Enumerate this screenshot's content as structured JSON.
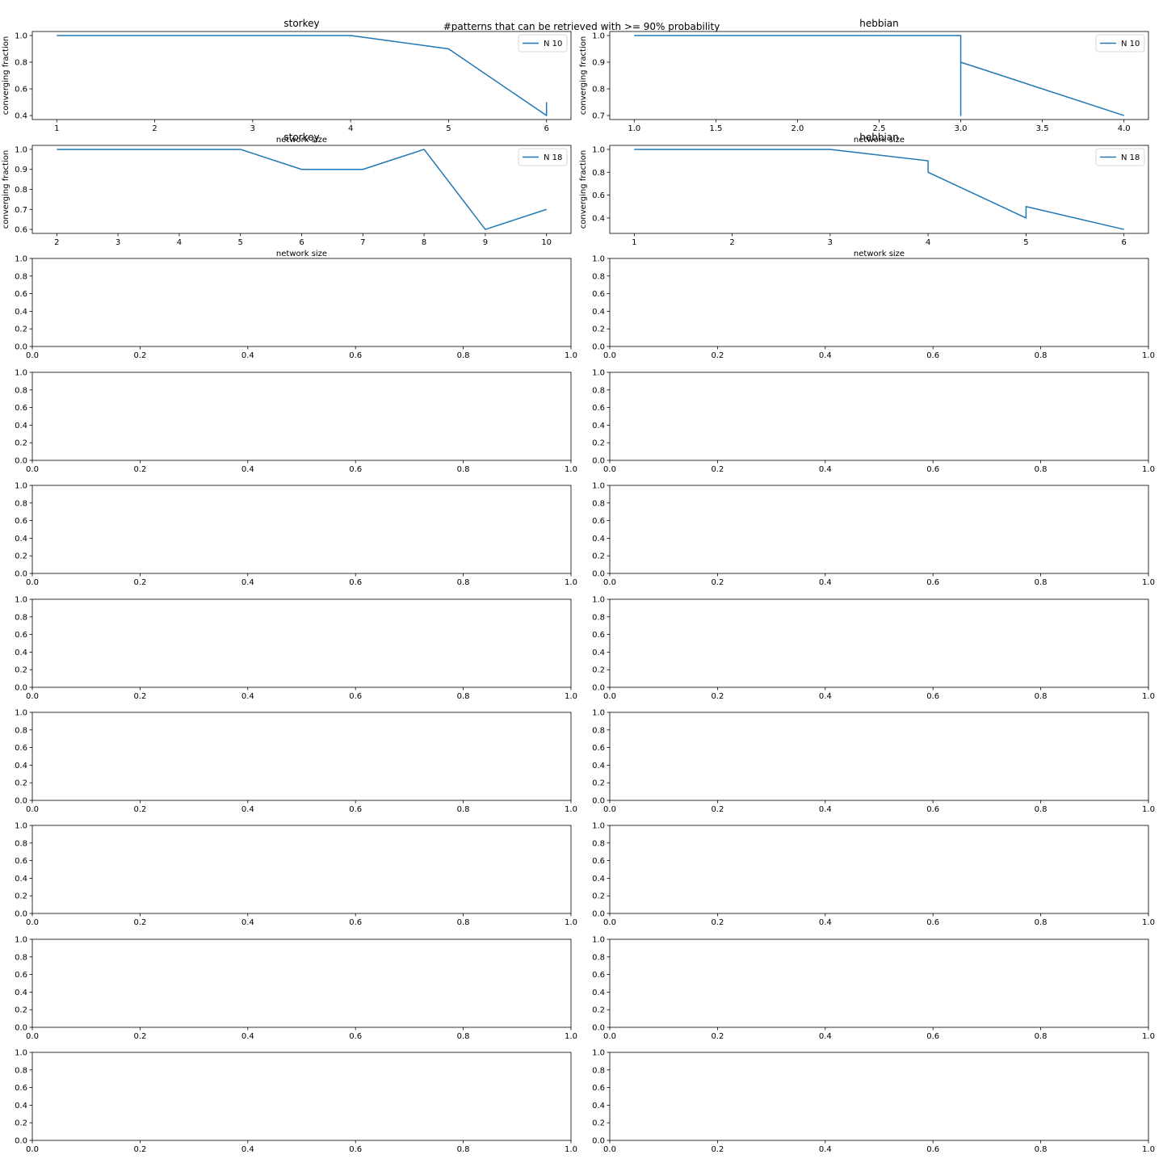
{
  "figure": {
    "suptitle": "#patterns that can be retrieved with >= 90% probability",
    "line_color": "#1f77b4"
  },
  "chart_data": [
    {
      "type": "line",
      "title": "storkey",
      "xlabel": "network size",
      "ylabel": "converging fraction",
      "xlim": [
        0.75,
        6.25
      ],
      "ylim": [
        0.37,
        1.03
      ],
      "xticks": [
        1,
        2,
        3,
        4,
        5,
        6
      ],
      "xtick_labels": [
        "1",
        "2",
        "3",
        "4",
        "5",
        "6"
      ],
      "yticks": [
        0.4,
        0.6,
        0.8,
        1.0
      ],
      "ytick_labels": [
        "0.4",
        "0.6",
        "0.8",
        "1.0"
      ],
      "legend_position": "top-right",
      "series": [
        {
          "name": "N 10",
          "x": [
            1,
            2,
            3,
            4,
            5,
            6,
            6
          ],
          "y": [
            1.0,
            1.0,
            1.0,
            1.0,
            0.9,
            0.4,
            0.5
          ]
        }
      ]
    },
    {
      "type": "line",
      "title": "hebbian",
      "xlabel": "network size",
      "ylabel": "converging fraction",
      "xlim": [
        0.85,
        4.15
      ],
      "ylim": [
        0.685,
        1.015
      ],
      "xticks": [
        1.0,
        1.5,
        2.0,
        2.5,
        3.0,
        3.5,
        4.0
      ],
      "xtick_labels": [
        "1.0",
        "1.5",
        "2.0",
        "2.5",
        "3.0",
        "3.5",
        "4.0"
      ],
      "yticks": [
        0.7,
        0.8,
        0.9,
        1.0
      ],
      "ytick_labels": [
        "0.7",
        "0.8",
        "0.9",
        "1.0"
      ],
      "legend_position": "top-right",
      "series": [
        {
          "name": "N 10",
          "x": [
            1,
            2,
            3,
            3,
            3,
            4
          ],
          "y": [
            1.0,
            1.0,
            1.0,
            0.7,
            0.9,
            0.7
          ]
        }
      ]
    },
    {
      "type": "line",
      "title": "storkey",
      "xlabel": "network size",
      "ylabel": "converging fraction",
      "xlim": [
        1.6,
        10.4
      ],
      "ylim": [
        0.58,
        1.02
      ],
      "xticks": [
        2,
        3,
        4,
        5,
        6,
        7,
        8,
        9,
        10
      ],
      "xtick_labels": [
        "2",
        "3",
        "4",
        "5",
        "6",
        "7",
        "8",
        "9",
        "10"
      ],
      "yticks": [
        0.6,
        0.7,
        0.8,
        0.9,
        1.0
      ],
      "ytick_labels": [
        "0.6",
        "0.7",
        "0.8",
        "0.9",
        "1.0"
      ],
      "legend_position": "top-right",
      "series": [
        {
          "name": "N 18",
          "x": [
            2,
            3,
            4,
            5,
            6,
            7,
            8,
            9,
            10
          ],
          "y": [
            1.0,
            1.0,
            1.0,
            1.0,
            0.9,
            0.9,
            1.0,
            0.6,
            0.7
          ]
        }
      ]
    },
    {
      "type": "line",
      "title": "hebbian",
      "xlabel": "network size",
      "ylabel": "converging fraction",
      "xlim": [
        0.75,
        6.25
      ],
      "ylim": [
        0.265,
        1.035
      ],
      "xticks": [
        1,
        2,
        3,
        4,
        5,
        6
      ],
      "xtick_labels": [
        "1",
        "2",
        "3",
        "4",
        "5",
        "6"
      ],
      "yticks": [
        0.4,
        0.6,
        0.8,
        1.0
      ],
      "ytick_labels": [
        "0.4",
        "0.6",
        "0.8",
        "1.0"
      ],
      "legend_position": "top-right",
      "series": [
        {
          "name": "N 18",
          "x": [
            1,
            2,
            3,
            4,
            4,
            5,
            5,
            6
          ],
          "y": [
            1.0,
            1.0,
            1.0,
            0.9,
            0.8,
            0.4,
            0.5,
            0.3
          ]
        }
      ]
    },
    {
      "type": "line",
      "empty": true,
      "xlim": [
        0,
        1
      ],
      "ylim": [
        0,
        1
      ],
      "xticks": [
        0,
        0.2,
        0.4,
        0.6,
        0.8,
        1.0
      ],
      "xtick_labels": [
        "0.0",
        "0.2",
        "0.4",
        "0.6",
        "0.8",
        "1.0"
      ],
      "yticks": [
        0,
        0.2,
        0.4,
        0.6,
        0.8,
        1.0
      ],
      "ytick_labels": [
        "0.0",
        "0.2",
        "0.4",
        "0.6",
        "0.8",
        "1.0"
      ]
    },
    {
      "type": "line",
      "empty": true,
      "xlim": [
        0,
        1
      ],
      "ylim": [
        0,
        1
      ],
      "xticks": [
        0,
        0.2,
        0.4,
        0.6,
        0.8,
        1.0
      ],
      "xtick_labels": [
        "0.0",
        "0.2",
        "0.4",
        "0.6",
        "0.8",
        "1.0"
      ],
      "yticks": [
        0,
        0.2,
        0.4,
        0.6,
        0.8,
        1.0
      ],
      "ytick_labels": [
        "0.0",
        "0.2",
        "0.4",
        "0.6",
        "0.8",
        "1.0"
      ]
    },
    {
      "type": "line",
      "empty": true,
      "xlim": [
        0,
        1
      ],
      "ylim": [
        0,
        1
      ],
      "xticks": [
        0,
        0.2,
        0.4,
        0.6,
        0.8,
        1.0
      ],
      "xtick_labels": [
        "0.0",
        "0.2",
        "0.4",
        "0.6",
        "0.8",
        "1.0"
      ],
      "yticks": [
        0,
        0.2,
        0.4,
        0.6,
        0.8,
        1.0
      ],
      "ytick_labels": [
        "0.0",
        "0.2",
        "0.4",
        "0.6",
        "0.8",
        "1.0"
      ]
    },
    {
      "type": "line",
      "empty": true,
      "xlim": [
        0,
        1
      ],
      "ylim": [
        0,
        1
      ],
      "xticks": [
        0,
        0.2,
        0.4,
        0.6,
        0.8,
        1.0
      ],
      "xtick_labels": [
        "0.0",
        "0.2",
        "0.4",
        "0.6",
        "0.8",
        "1.0"
      ],
      "yticks": [
        0,
        0.2,
        0.4,
        0.6,
        0.8,
        1.0
      ],
      "ytick_labels": [
        "0.0",
        "0.2",
        "0.4",
        "0.6",
        "0.8",
        "1.0"
      ]
    },
    {
      "type": "line",
      "empty": true,
      "xlim": [
        0,
        1
      ],
      "ylim": [
        0,
        1
      ],
      "xticks": [
        0,
        0.2,
        0.4,
        0.6,
        0.8,
        1.0
      ],
      "xtick_labels": [
        "0.0",
        "0.2",
        "0.4",
        "0.6",
        "0.8",
        "1.0"
      ],
      "yticks": [
        0,
        0.2,
        0.4,
        0.6,
        0.8,
        1.0
      ],
      "ytick_labels": [
        "0.0",
        "0.2",
        "0.4",
        "0.6",
        "0.8",
        "1.0"
      ]
    },
    {
      "type": "line",
      "empty": true,
      "xlim": [
        0,
        1
      ],
      "ylim": [
        0,
        1
      ],
      "xticks": [
        0,
        0.2,
        0.4,
        0.6,
        0.8,
        1.0
      ],
      "xtick_labels": [
        "0.0",
        "0.2",
        "0.4",
        "0.6",
        "0.8",
        "1.0"
      ],
      "yticks": [
        0,
        0.2,
        0.4,
        0.6,
        0.8,
        1.0
      ],
      "ytick_labels": [
        "0.0",
        "0.2",
        "0.4",
        "0.6",
        "0.8",
        "1.0"
      ]
    },
    {
      "type": "line",
      "empty": true,
      "xlim": [
        0,
        1
      ],
      "ylim": [
        0,
        1
      ],
      "xticks": [
        0,
        0.2,
        0.4,
        0.6,
        0.8,
        1.0
      ],
      "xtick_labels": [
        "0.0",
        "0.2",
        "0.4",
        "0.6",
        "0.8",
        "1.0"
      ],
      "yticks": [
        0,
        0.2,
        0.4,
        0.6,
        0.8,
        1.0
      ],
      "ytick_labels": [
        "0.0",
        "0.2",
        "0.4",
        "0.6",
        "0.8",
        "1.0"
      ]
    },
    {
      "type": "line",
      "empty": true,
      "xlim": [
        0,
        1
      ],
      "ylim": [
        0,
        1
      ],
      "xticks": [
        0,
        0.2,
        0.4,
        0.6,
        0.8,
        1.0
      ],
      "xtick_labels": [
        "0.0",
        "0.2",
        "0.4",
        "0.6",
        "0.8",
        "1.0"
      ],
      "yticks": [
        0,
        0.2,
        0.4,
        0.6,
        0.8,
        1.0
      ],
      "ytick_labels": [
        "0.0",
        "0.2",
        "0.4",
        "0.6",
        "0.8",
        "1.0"
      ]
    },
    {
      "type": "line",
      "empty": true,
      "xlim": [
        0,
        1
      ],
      "ylim": [
        0,
        1
      ],
      "xticks": [
        0,
        0.2,
        0.4,
        0.6,
        0.8,
        1.0
      ],
      "xtick_labels": [
        "0.0",
        "0.2",
        "0.4",
        "0.6",
        "0.8",
        "1.0"
      ],
      "yticks": [
        0,
        0.2,
        0.4,
        0.6,
        0.8,
        1.0
      ],
      "ytick_labels": [
        "0.0",
        "0.2",
        "0.4",
        "0.6",
        "0.8",
        "1.0"
      ]
    },
    {
      "type": "line",
      "empty": true,
      "xlim": [
        0,
        1
      ],
      "ylim": [
        0,
        1
      ],
      "xticks": [
        0,
        0.2,
        0.4,
        0.6,
        0.8,
        1.0
      ],
      "xtick_labels": [
        "0.0",
        "0.2",
        "0.4",
        "0.6",
        "0.8",
        "1.0"
      ],
      "yticks": [
        0,
        0.2,
        0.4,
        0.6,
        0.8,
        1.0
      ],
      "ytick_labels": [
        "0.0",
        "0.2",
        "0.4",
        "0.6",
        "0.8",
        "1.0"
      ]
    },
    {
      "type": "line",
      "empty": true,
      "xlim": [
        0,
        1
      ],
      "ylim": [
        0,
        1
      ],
      "xticks": [
        0,
        0.2,
        0.4,
        0.6,
        0.8,
        1.0
      ],
      "xtick_labels": [
        "0.0",
        "0.2",
        "0.4",
        "0.6",
        "0.8",
        "1.0"
      ],
      "yticks": [
        0,
        0.2,
        0.4,
        0.6,
        0.8,
        1.0
      ],
      "ytick_labels": [
        "0.0",
        "0.2",
        "0.4",
        "0.6",
        "0.8",
        "1.0"
      ]
    },
    {
      "type": "line",
      "empty": true,
      "xlim": [
        0,
        1
      ],
      "ylim": [
        0,
        1
      ],
      "xticks": [
        0,
        0.2,
        0.4,
        0.6,
        0.8,
        1.0
      ],
      "xtick_labels": [
        "0.0",
        "0.2",
        "0.4",
        "0.6",
        "0.8",
        "1.0"
      ],
      "yticks": [
        0,
        0.2,
        0.4,
        0.6,
        0.8,
        1.0
      ],
      "ytick_labels": [
        "0.0",
        "0.2",
        "0.4",
        "0.6",
        "0.8",
        "1.0"
      ]
    },
    {
      "type": "line",
      "empty": true,
      "xlim": [
        0,
        1
      ],
      "ylim": [
        0,
        1
      ],
      "xticks": [
        0,
        0.2,
        0.4,
        0.6,
        0.8,
        1.0
      ],
      "xtick_labels": [
        "0.0",
        "0.2",
        "0.4",
        "0.6",
        "0.8",
        "1.0"
      ],
      "yticks": [
        0,
        0.2,
        0.4,
        0.6,
        0.8,
        1.0
      ],
      "ytick_labels": [
        "0.0",
        "0.2",
        "0.4",
        "0.6",
        "0.8",
        "1.0"
      ]
    },
    {
      "type": "line",
      "empty": true,
      "xlim": [
        0,
        1
      ],
      "ylim": [
        0,
        1
      ],
      "xticks": [
        0,
        0.2,
        0.4,
        0.6,
        0.8,
        1.0
      ],
      "xtick_labels": [
        "0.0",
        "0.2",
        "0.4",
        "0.6",
        "0.8",
        "1.0"
      ],
      "yticks": [
        0,
        0.2,
        0.4,
        0.6,
        0.8,
        1.0
      ],
      "ytick_labels": [
        "0.0",
        "0.2",
        "0.4",
        "0.6",
        "0.8",
        "1.0"
      ]
    },
    {
      "type": "line",
      "empty": true,
      "xlim": [
        0,
        1
      ],
      "ylim": [
        0,
        1
      ],
      "xticks": [
        0,
        0.2,
        0.4,
        0.6,
        0.8,
        1.0
      ],
      "xtick_labels": [
        "0.0",
        "0.2",
        "0.4",
        "0.6",
        "0.8",
        "1.0"
      ],
      "yticks": [
        0,
        0.2,
        0.4,
        0.6,
        0.8,
        1.0
      ],
      "ytick_labels": [
        "0.0",
        "0.2",
        "0.4",
        "0.6",
        "0.8",
        "1.0"
      ]
    },
    {
      "type": "line",
      "empty": true,
      "xlim": [
        0,
        1
      ],
      "ylim": [
        0,
        1
      ],
      "xticks": [
        0,
        0.2,
        0.4,
        0.6,
        0.8,
        1.0
      ],
      "xtick_labels": [
        "0.0",
        "0.2",
        "0.4",
        "0.6",
        "0.8",
        "1.0"
      ],
      "yticks": [
        0,
        0.2,
        0.4,
        0.6,
        0.8,
        1.0
      ],
      "ytick_labels": [
        "0.0",
        "0.2",
        "0.4",
        "0.6",
        "0.8",
        "1.0"
      ]
    }
  ]
}
